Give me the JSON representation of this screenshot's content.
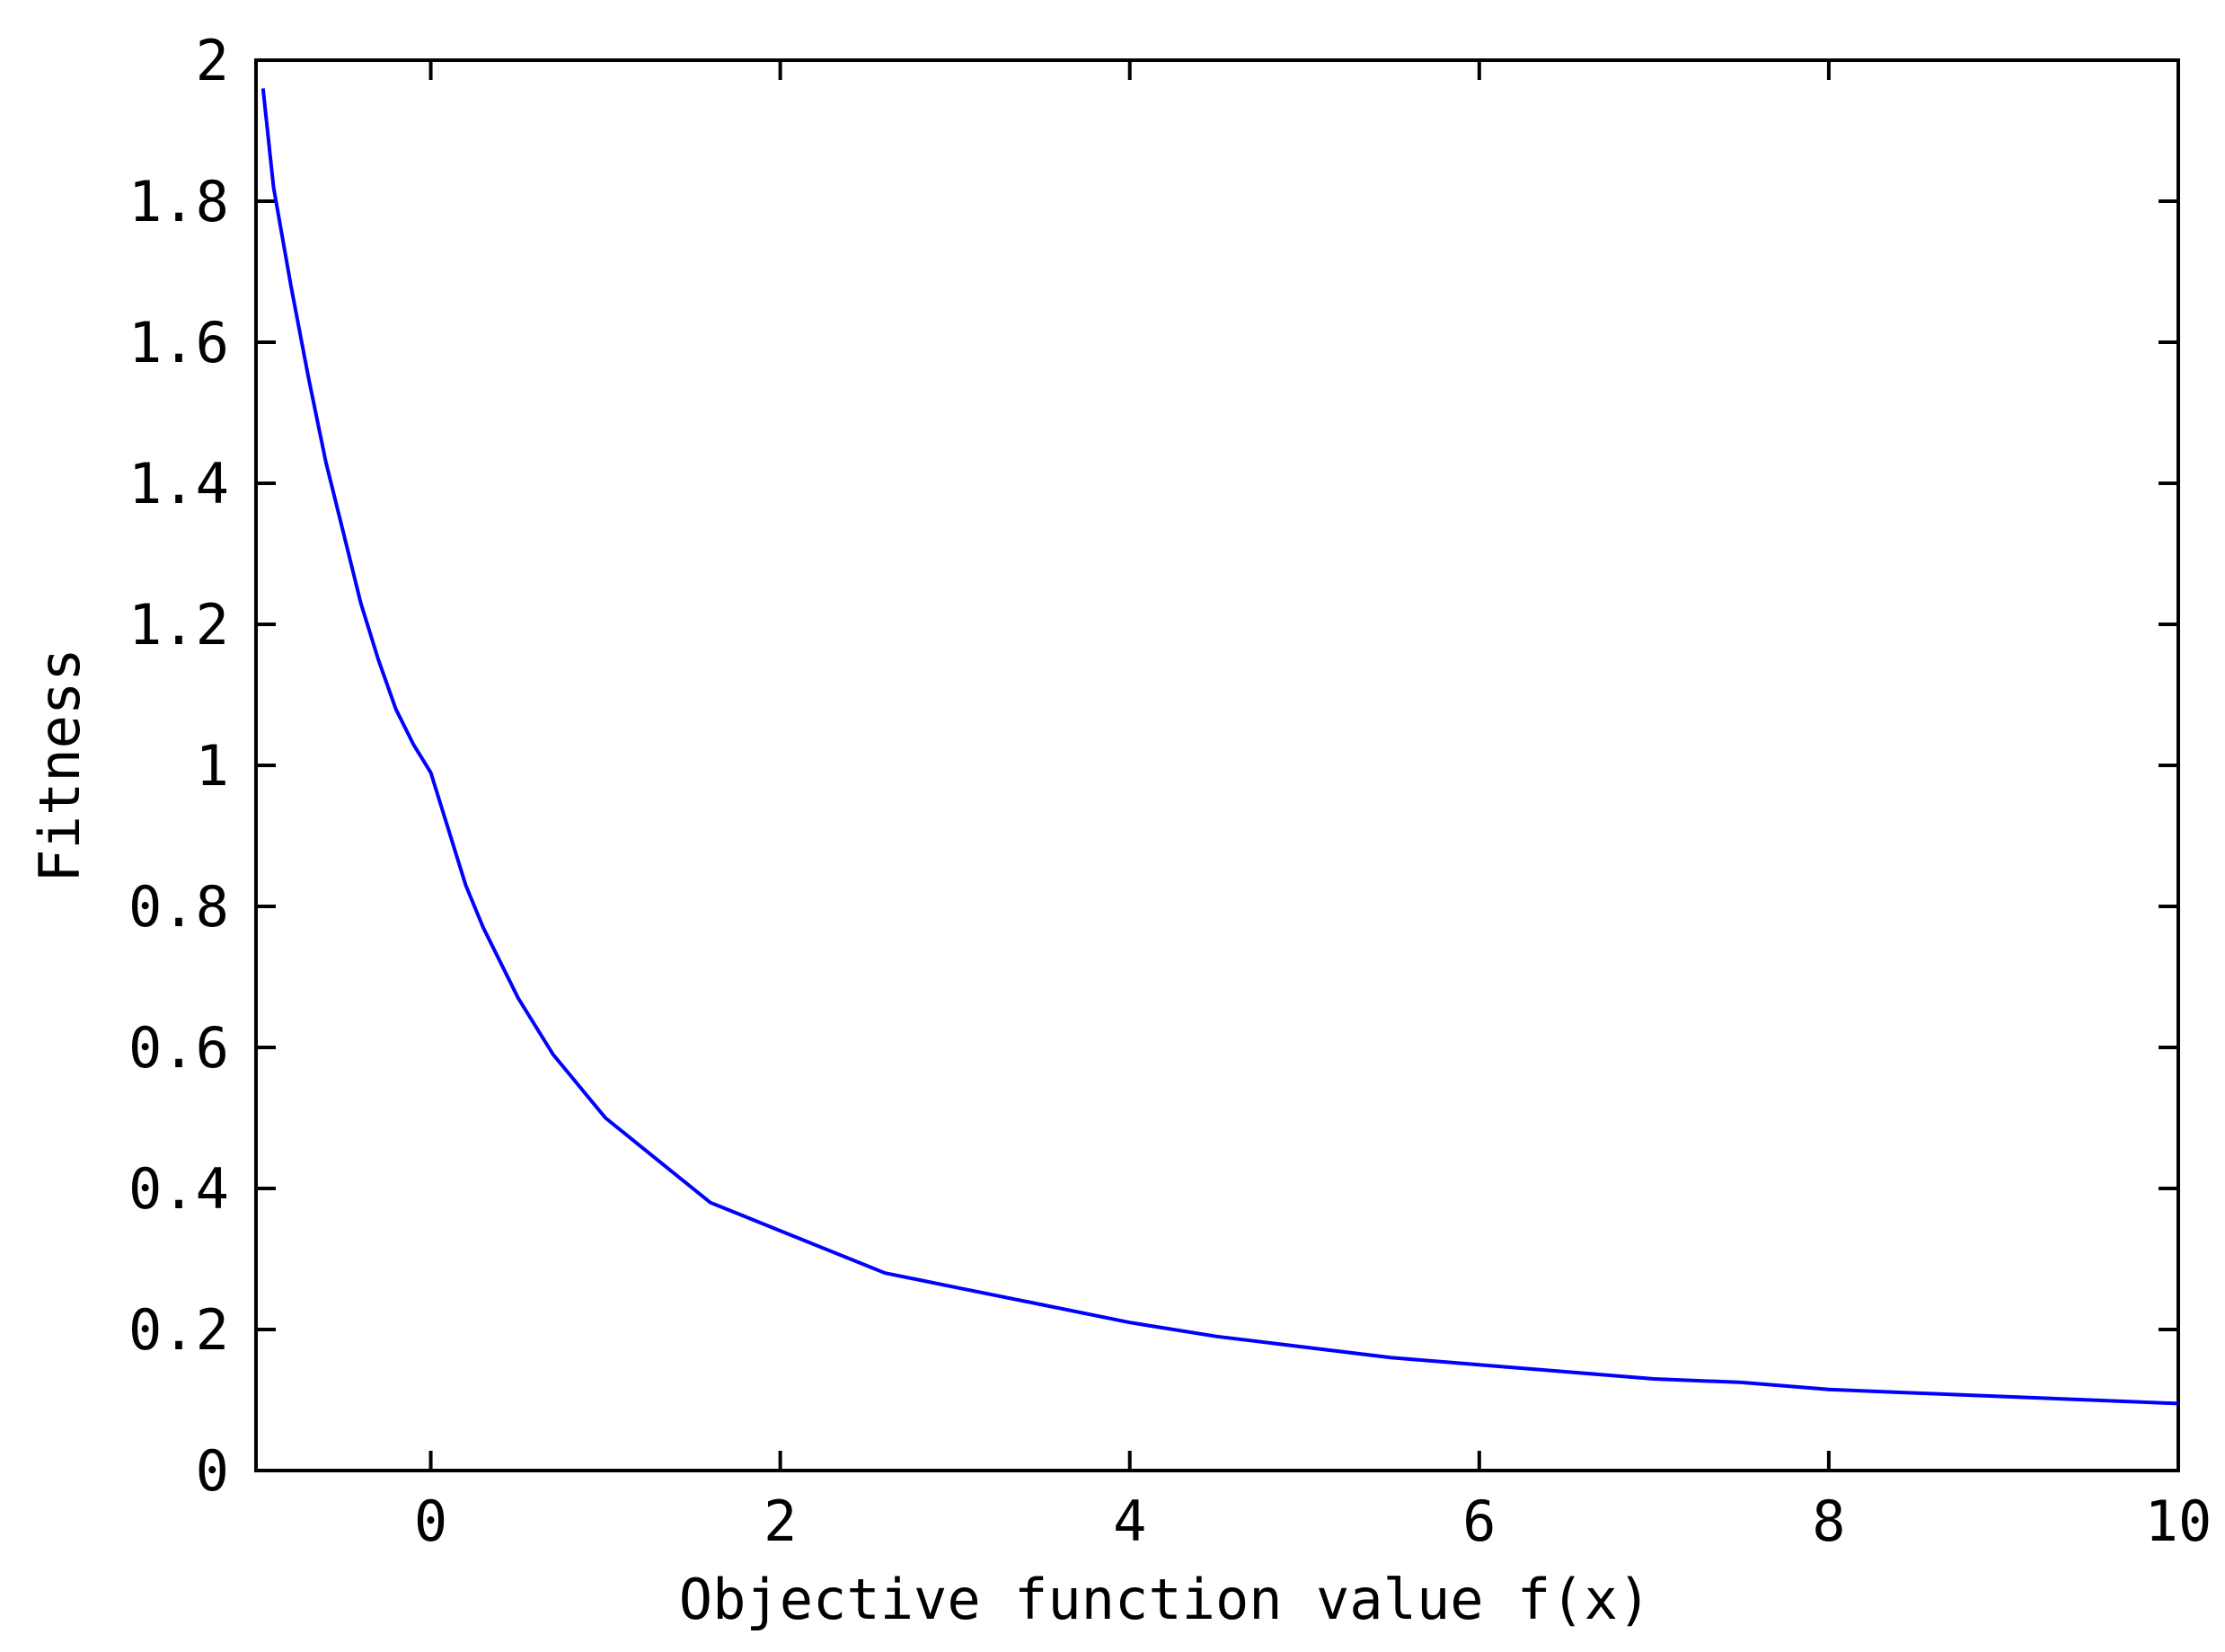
{
  "chart_data": {
    "type": "line",
    "title": "",
    "xlabel": "Objective function value f(x)",
    "ylabel": "Fitness",
    "xlim": [
      -1,
      10
    ],
    "ylim": [
      0,
      2
    ],
    "x_ticks": [
      0,
      2,
      4,
      6,
      8,
      10
    ],
    "y_ticks": [
      0,
      0.2,
      0.4,
      0.6,
      0.8,
      1,
      1.2,
      1.4,
      1.6,
      1.8,
      2
    ],
    "x_tick_labels": [
      "0",
      "2",
      "4",
      "6",
      "8",
      "10"
    ],
    "y_tick_labels": [
      "0",
      "0.2",
      "0.4",
      "0.6",
      "0.8",
      "1",
      "1.2",
      "1.4",
      "1.6",
      "1.8",
      "2"
    ],
    "grid": false,
    "series": [
      {
        "color": "#0000ff",
        "x": [
          -0.96,
          -0.9,
          -0.8,
          -0.7,
          -0.6,
          -0.5,
          -0.4,
          -0.3,
          -0.2,
          -0.1,
          0,
          0.1,
          0.2,
          0.3,
          0.4,
          0.5,
          0.6,
          0.7,
          0.8,
          0.9,
          1.0,
          1.2,
          1.4,
          1.6,
          1.8,
          2.0,
          2.2,
          2.4,
          2.6,
          2.8,
          3.0,
          3.5,
          4.0,
          4.5,
          5.0,
          5.5,
          6.0,
          6.5,
          7.0,
          7.5,
          8.0,
          8.5,
          9.0,
          9.5,
          10.0
        ],
        "y": [
          1.96,
          1.82,
          1.68,
          1.55,
          1.43,
          1.33,
          1.23,
          1.15,
          1.08,
          1.03,
          0.99,
          0.91,
          0.83,
          0.77,
          0.72,
          0.67,
          0.63,
          0.59,
          0.56,
          0.53,
          0.5,
          0.46,
          0.42,
          0.38,
          0.36,
          0.34,
          0.32,
          0.3,
          0.28,
          0.27,
          0.26,
          0.235,
          0.21,
          0.19,
          0.175,
          0.16,
          0.15,
          0.14,
          0.13,
          0.125,
          0.115,
          0.11,
          0.105,
          0.1,
          0.095
        ]
      }
    ]
  }
}
